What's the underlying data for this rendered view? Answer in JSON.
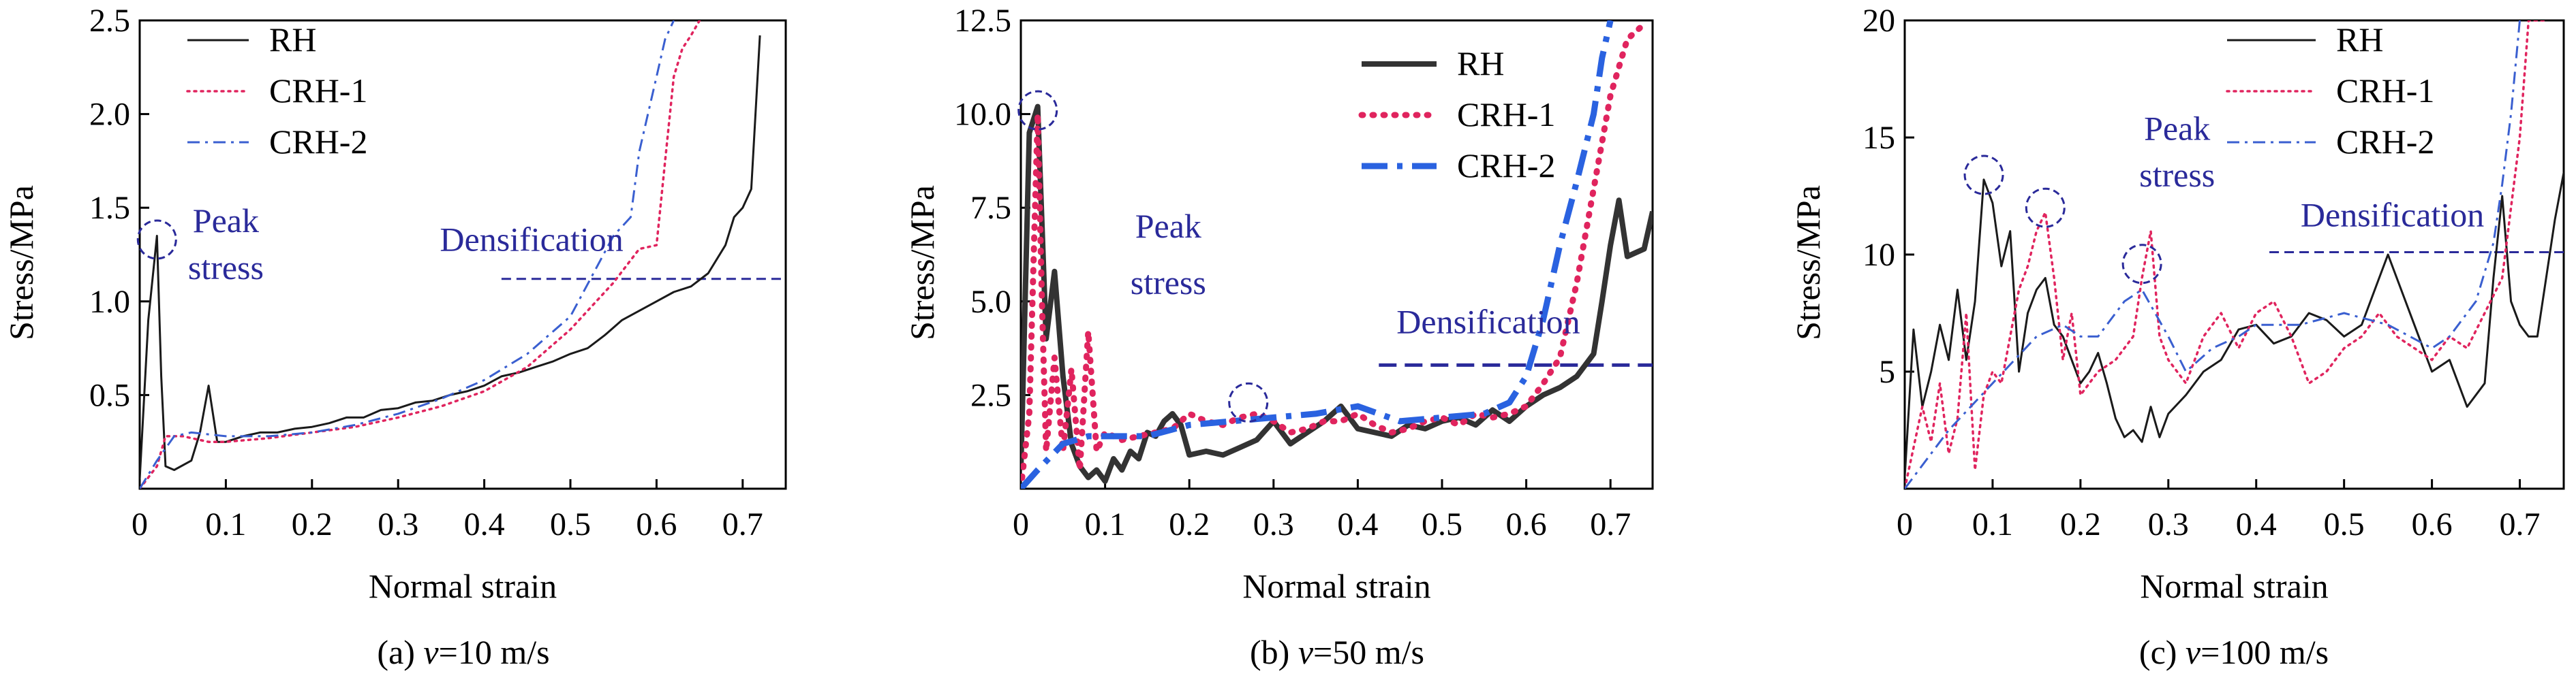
{
  "chart_data": [
    {
      "type": "line",
      "caption_prefix": "(a) ",
      "caption_var": "v",
      "caption_suffix": "=10 m/s",
      "xlabel": "Normal strain",
      "ylabel": "Stress/MPa",
      "xlim": [
        0,
        0.75
      ],
      "ylim": [
        0,
        2.5
      ],
      "xticks": [
        "0",
        "0.1",
        "0.2",
        "0.3",
        "0.4",
        "0.5",
        "0.6",
        "0.7"
      ],
      "yticks": [
        "0.5",
        "1.0",
        "1.5",
        "2.0",
        "2.5"
      ],
      "legend_position": "top-left",
      "series": [
        {
          "name": "RH",
          "color": "#1a1a1a",
          "style": "solid",
          "x": [
            0,
            0.01,
            0.02,
            0.025,
            0.03,
            0.04,
            0.06,
            0.07,
            0.08,
            0.09,
            0.1,
            0.12,
            0.14,
            0.16,
            0.18,
            0.2,
            0.22,
            0.24,
            0.26,
            0.28,
            0.3,
            0.32,
            0.34,
            0.36,
            0.38,
            0.4,
            0.42,
            0.44,
            0.46,
            0.48,
            0.5,
            0.52,
            0.54,
            0.56,
            0.58,
            0.6,
            0.62,
            0.64,
            0.66,
            0.68,
            0.69,
            0.7,
            0.71,
            0.72
          ],
          "y": [
            0.05,
            0.9,
            1.35,
            0.6,
            0.12,
            0.1,
            0.15,
            0.3,
            0.55,
            0.25,
            0.25,
            0.28,
            0.3,
            0.3,
            0.32,
            0.33,
            0.35,
            0.38,
            0.38,
            0.42,
            0.43,
            0.46,
            0.47,
            0.5,
            0.52,
            0.55,
            0.6,
            0.62,
            0.65,
            0.68,
            0.72,
            0.75,
            0.82,
            0.9,
            0.95,
            1.0,
            1.05,
            1.08,
            1.15,
            1.3,
            1.45,
            1.5,
            1.6,
            2.42
          ]
        },
        {
          "name": "CRH-1",
          "color": "#e0245e",
          "style": "dotted",
          "x": [
            0,
            0.02,
            0.03,
            0.05,
            0.08,
            0.1,
            0.15,
            0.2,
            0.25,
            0.3,
            0.35,
            0.4,
            0.45,
            0.5,
            0.55,
            0.58,
            0.6,
            0.61,
            0.62,
            0.63,
            0.64,
            0.65
          ],
          "y": [
            0.0,
            0.12,
            0.28,
            0.28,
            0.25,
            0.25,
            0.27,
            0.3,
            0.33,
            0.38,
            0.44,
            0.52,
            0.65,
            0.85,
            1.1,
            1.28,
            1.3,
            1.75,
            2.2,
            2.35,
            2.42,
            2.5
          ]
        },
        {
          "name": "CRH-2",
          "color": "#3a5fd0",
          "style": "dashdot",
          "x": [
            0,
            0.02,
            0.04,
            0.06,
            0.1,
            0.15,
            0.2,
            0.25,
            0.3,
            0.35,
            0.4,
            0.45,
            0.5,
            0.55,
            0.57,
            0.58,
            0.6,
            0.61,
            0.62
          ],
          "y": [
            0.0,
            0.15,
            0.28,
            0.3,
            0.28,
            0.28,
            0.3,
            0.34,
            0.4,
            0.48,
            0.58,
            0.72,
            0.92,
            1.35,
            1.45,
            1.8,
            2.2,
            2.4,
            2.5
          ]
        }
      ],
      "annotations": [
        {
          "label": "Peak stress",
          "lines": [
            "Peak",
            "stress"
          ],
          "color": "#2a2a9a",
          "x": 0.1,
          "y": [
            1.37,
            1.12
          ]
        },
        {
          "label": "Densification",
          "color": "#2a2a9a",
          "x": 0.455,
          "y": 1.27,
          "anchor": "middle"
        }
      ],
      "densification_line": {
        "y": 1.12,
        "x0": 0.42,
        "x1": 0.75,
        "color": "#2a2a9a"
      },
      "peak_circle": {
        "x": 0.02,
        "y": 1.33,
        "color": "#2a2a9a"
      }
    },
    {
      "type": "line",
      "caption_prefix": "(b) ",
      "caption_var": "v",
      "caption_suffix": "=50 m/s",
      "xlabel": "Normal strain",
      "ylabel": "Stress/MPa",
      "xlim": [
        0,
        0.75
      ],
      "ylim": [
        0,
        12.5
      ],
      "xticks": [
        "0",
        "0.1",
        "0.2",
        "0.3",
        "0.4",
        "0.5",
        "0.6",
        "0.7"
      ],
      "yticks": [
        "2.5",
        "5.0",
        "7.5",
        "10.0",
        "12.5"
      ],
      "legend_position": "top-right",
      "series": [
        {
          "name": "RH",
          "color": "#333333",
          "style": "solid-thick",
          "x": [
            0,
            0.01,
            0.02,
            0.03,
            0.04,
            0.05,
            0.06,
            0.07,
            0.08,
            0.09,
            0.1,
            0.11,
            0.12,
            0.13,
            0.14,
            0.15,
            0.16,
            0.17,
            0.18,
            0.19,
            0.2,
            0.22,
            0.24,
            0.26,
            0.28,
            0.3,
            0.32,
            0.34,
            0.36,
            0.38,
            0.4,
            0.42,
            0.44,
            0.46,
            0.48,
            0.5,
            0.52,
            0.54,
            0.56,
            0.58,
            0.6,
            0.62,
            0.64,
            0.66,
            0.68,
            0.69,
            0.7,
            0.71,
            0.72,
            0.73,
            0.74,
            0.75
          ],
          "y": [
            0.5,
            9.5,
            10.2,
            4.0,
            5.8,
            3.0,
            1.2,
            0.6,
            0.3,
            0.5,
            0.2,
            0.8,
            0.5,
            1.0,
            0.8,
            1.5,
            1.4,
            1.8,
            2.0,
            1.7,
            0.9,
            1.0,
            0.9,
            1.1,
            1.3,
            1.8,
            1.2,
            1.5,
            1.8,
            2.2,
            1.6,
            1.5,
            1.4,
            1.7,
            1.6,
            1.8,
            1.9,
            1.7,
            2.1,
            1.8,
            2.2,
            2.5,
            2.7,
            3.0,
            3.6,
            5.0,
            6.5,
            7.7,
            6.2,
            6.3,
            6.4,
            7.4
          ]
        },
        {
          "name": "CRH-1",
          "color": "#e0245e",
          "style": "dotted-thick",
          "x": [
            0,
            0.01,
            0.02,
            0.025,
            0.03,
            0.04,
            0.05,
            0.06,
            0.07,
            0.08,
            0.09,
            0.1,
            0.12,
            0.14,
            0.16,
            0.18,
            0.2,
            0.22,
            0.24,
            0.26,
            0.28,
            0.3,
            0.32,
            0.34,
            0.36,
            0.38,
            0.4,
            0.42,
            0.44,
            0.46,
            0.48,
            0.5,
            0.52,
            0.54,
            0.56,
            0.58,
            0.6,
            0.62,
            0.64,
            0.66,
            0.68,
            0.7,
            0.72,
            0.74
          ],
          "y": [
            0,
            2.0,
            10.0,
            5.0,
            1.0,
            3.5,
            1.0,
            3.2,
            0.5,
            4.2,
            1.0,
            1.5,
            1.3,
            1.4,
            1.5,
            1.6,
            2.0,
            1.8,
            1.7,
            1.9,
            2.0,
            1.8,
            1.5,
            1.6,
            1.8,
            1.8,
            2.0,
            1.7,
            1.5,
            1.6,
            1.8,
            1.9,
            1.7,
            2.0,
            1.9,
            2.0,
            2.2,
            2.8,
            3.5,
            5.5,
            8.0,
            10.5,
            12.0,
            12.4
          ]
        },
        {
          "name": "CRH-2",
          "color": "#2a62e0",
          "style": "dashdot-thick",
          "x": [
            0,
            0.02,
            0.05,
            0.08,
            0.1,
            0.15,
            0.2,
            0.25,
            0.3,
            0.35,
            0.4,
            0.45,
            0.5,
            0.55,
            0.58,
            0.6,
            0.62,
            0.64,
            0.66,
            0.68,
            0.69,
            0.7
          ],
          "y": [
            0,
            0.5,
            1.2,
            1.4,
            1.4,
            1.4,
            1.7,
            1.8,
            1.9,
            2.0,
            2.2,
            1.8,
            1.9,
            2.0,
            2.3,
            3.0,
            4.5,
            6.5,
            8.2,
            10.0,
            11.5,
            12.5
          ]
        }
      ],
      "annotations": [
        {
          "label": "Peak stress",
          "lines": [
            "Peak",
            "stress"
          ],
          "color": "#2a2a9a",
          "x": 0.175,
          "y": [
            6.7,
            5.2
          ]
        },
        {
          "label": "Densification",
          "color": "#2a2a9a",
          "x": 0.555,
          "y": 4.15,
          "anchor": "middle"
        }
      ],
      "densification_line": {
        "y": 3.3,
        "x0": 0.425,
        "x1": 0.75,
        "color": "#2a2a9a"
      },
      "peak_circle": [
        {
          "x": 0.02,
          "y": 10.1,
          "color": "#2a2a9a"
        },
        {
          "x": 0.27,
          "y": 2.3,
          "color": "#2a2a9a"
        }
      ]
    },
    {
      "type": "line",
      "caption_prefix": "(c) ",
      "caption_var": "v",
      "caption_suffix": "=100 m/s",
      "xlabel": "Normal strain",
      "ylabel": "Stress/MPa",
      "xlim": [
        0,
        0.75
      ],
      "ylim": [
        0,
        20
      ],
      "xticks": [
        "0",
        "0.1",
        "0.2",
        "0.3",
        "0.4",
        "0.5",
        "0.6",
        "0.7"
      ],
      "yticks": [
        "5",
        "10",
        "15",
        "20"
      ],
      "legend_position": "top-right",
      "series": [
        {
          "name": "RH",
          "color": "#1a1a1a",
          "style": "solid",
          "x": [
            0,
            0.01,
            0.02,
            0.03,
            0.04,
            0.05,
            0.06,
            0.07,
            0.08,
            0.09,
            0.1,
            0.11,
            0.12,
            0.13,
            0.14,
            0.15,
            0.16,
            0.17,
            0.18,
            0.19,
            0.2,
            0.21,
            0.22,
            0.23,
            0.24,
            0.25,
            0.26,
            0.27,
            0.28,
            0.29,
            0.3,
            0.32,
            0.34,
            0.36,
            0.38,
            0.4,
            0.42,
            0.44,
            0.46,
            0.48,
            0.5,
            0.52,
            0.54,
            0.55,
            0.56,
            0.58,
            0.6,
            0.62,
            0.64,
            0.66,
            0.67,
            0.68,
            0.69,
            0.7,
            0.71,
            0.72,
            0.73,
            0.74,
            0.75
          ],
          "y": [
            0.5,
            6.8,
            3.5,
            5.0,
            7.0,
            5.5,
            8.5,
            5.5,
            8.0,
            13.2,
            12.2,
            9.5,
            11.0,
            5.0,
            7.5,
            8.5,
            9.0,
            7.0,
            6.5,
            5.5,
            4.5,
            5.0,
            5.8,
            4.5,
            3.0,
            2.2,
            2.5,
            2.0,
            3.5,
            2.2,
            3.2,
            4.0,
            5.0,
            5.5,
            6.8,
            7.0,
            6.2,
            6.5,
            7.5,
            7.2,
            6.5,
            7.0,
            9.0,
            10.0,
            9.0,
            7.0,
            5.0,
            5.5,
            3.5,
            4.5,
            9.0,
            12.5,
            8.0,
            7.0,
            6.5,
            6.5,
            9.0,
            11.5,
            13.5
          ]
        },
        {
          "name": "CRH-1",
          "color": "#e0245e",
          "style": "dotted",
          "x": [
            0,
            0.02,
            0.03,
            0.04,
            0.05,
            0.06,
            0.07,
            0.08,
            0.09,
            0.1,
            0.11,
            0.12,
            0.13,
            0.14,
            0.15,
            0.16,
            0.17,
            0.18,
            0.19,
            0.2,
            0.22,
            0.24,
            0.26,
            0.27,
            0.28,
            0.29,
            0.3,
            0.32,
            0.34,
            0.36,
            0.38,
            0.4,
            0.42,
            0.44,
            0.46,
            0.48,
            0.5,
            0.52,
            0.54,
            0.56,
            0.58,
            0.6,
            0.62,
            0.64,
            0.66,
            0.68,
            0.7,
            0.71,
            0.72,
            0.73
          ],
          "y": [
            0,
            3.5,
            2.0,
            4.5,
            1.5,
            3.0,
            7.5,
            0.8,
            4.0,
            5.0,
            4.5,
            6.5,
            8.5,
            9.5,
            11.0,
            11.8,
            9.0,
            5.5,
            7.5,
            4.0,
            5.0,
            5.5,
            6.5,
            9.0,
            11.0,
            6.5,
            5.5,
            4.5,
            6.5,
            7.5,
            6.0,
            7.5,
            8.0,
            6.5,
            4.5,
            5.0,
            6.0,
            6.5,
            7.5,
            6.5,
            6.0,
            5.5,
            6.5,
            6.0,
            7.5,
            9.0,
            15.0,
            20.0,
            20.0,
            20.0
          ]
        },
        {
          "name": "CRH-2",
          "color": "#3a5fd0",
          "style": "dashdot",
          "x": [
            0,
            0.05,
            0.1,
            0.15,
            0.18,
            0.2,
            0.22,
            0.25,
            0.27,
            0.3,
            0.32,
            0.35,
            0.38,
            0.4,
            0.42,
            0.45,
            0.5,
            0.55,
            0.6,
            0.62,
            0.65,
            0.67,
            0.68,
            0.69,
            0.7
          ],
          "y": [
            0,
            2.5,
            4.5,
            6.5,
            7.0,
            6.5,
            6.5,
            8.0,
            8.5,
            6.5,
            5.0,
            6.0,
            6.5,
            7.0,
            7.0,
            7.0,
            7.5,
            7.0,
            6.0,
            6.5,
            8.0,
            10.5,
            13.0,
            16.0,
            20.0
          ]
        }
      ],
      "annotations": [
        {
          "label": "Peak stress",
          "lines": [
            "Peak",
            "stress"
          ],
          "color": "#2a2a9a",
          "x": 0.31,
          "y": [
            14.9,
            12.9
          ]
        },
        {
          "label": "Densification",
          "color": "#2a2a9a",
          "x": 0.555,
          "y": 11.2,
          "anchor": "middle"
        }
      ],
      "densification_line": {
        "y": 10.1,
        "x0": 0.415,
        "x1": 0.75,
        "color": "#2a2a9a"
      },
      "peak_circle": [
        {
          "x": 0.09,
          "y": 13.4,
          "color": "#2a2a9a"
        },
        {
          "x": 0.16,
          "y": 12.0,
          "color": "#2a2a9a"
        },
        {
          "x": 0.27,
          "y": 9.6,
          "color": "#2a2a9a"
        }
      ]
    }
  ]
}
